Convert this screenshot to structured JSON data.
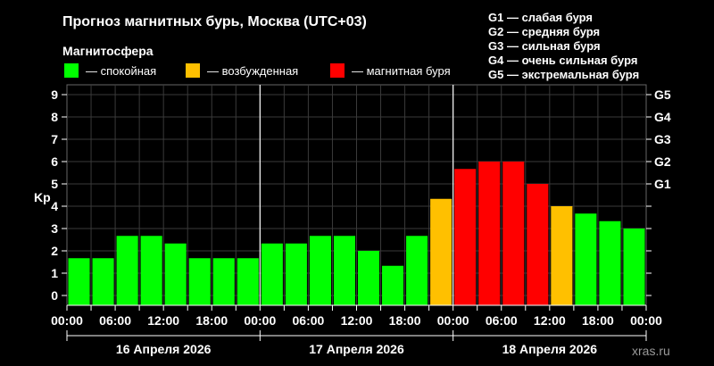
{
  "header": {
    "title": "Прогноз магнитных бурь, Москва (UTC+03)",
    "legend_title": "Магнитосфера"
  },
  "legend": [
    {
      "label": "— спокойная",
      "color": "#00ff00"
    },
    {
      "label": "— возбужденная",
      "color": "#ffc000"
    },
    {
      "label": "— магнитная буря",
      "color": "#ff0000"
    }
  ],
  "g_scale": [
    "G1 — слабая буря",
    "G2 — средняя буря",
    "G3 — сильная буря",
    "G4 — очень сильная буря",
    "G5 — экстремальная буря"
  ],
  "credit": "xras.ru",
  "chart_data": {
    "type": "bar",
    "ylabel": "Kp",
    "ylim": [
      0,
      9
    ],
    "yticks": [
      0,
      1,
      2,
      3,
      4,
      5,
      6,
      7,
      8,
      9
    ],
    "y2_labels": [
      {
        "label": "G1",
        "kp": 5
      },
      {
        "label": "G2",
        "kp": 6
      },
      {
        "label": "G3",
        "kp": 7
      },
      {
        "label": "G4",
        "kp": 8
      },
      {
        "label": "G5",
        "kp": 9
      }
    ],
    "x_tick_labels": [
      "00:00",
      "06:00",
      "12:00",
      "18:00",
      "00:00",
      "06:00",
      "12:00",
      "18:00",
      "00:00",
      "06:00",
      "12:00",
      "18:00",
      "00:00"
    ],
    "days": [
      "16 Апреля 2026",
      "17 Апреля 2026",
      "18 Апреля 2026"
    ],
    "grid": true,
    "values": [
      1.67,
      1.67,
      2.67,
      2.67,
      2.33,
      1.67,
      1.67,
      1.67,
      2.33,
      2.33,
      2.67,
      2.67,
      2.0,
      1.33,
      2.67,
      4.33,
      5.67,
      6.0,
      6.0,
      5.0,
      4.0,
      3.67,
      3.33,
      3.0
    ],
    "colors": {
      "quiet": "#00ff00",
      "active": "#ffc000",
      "storm": "#ff0000"
    }
  }
}
